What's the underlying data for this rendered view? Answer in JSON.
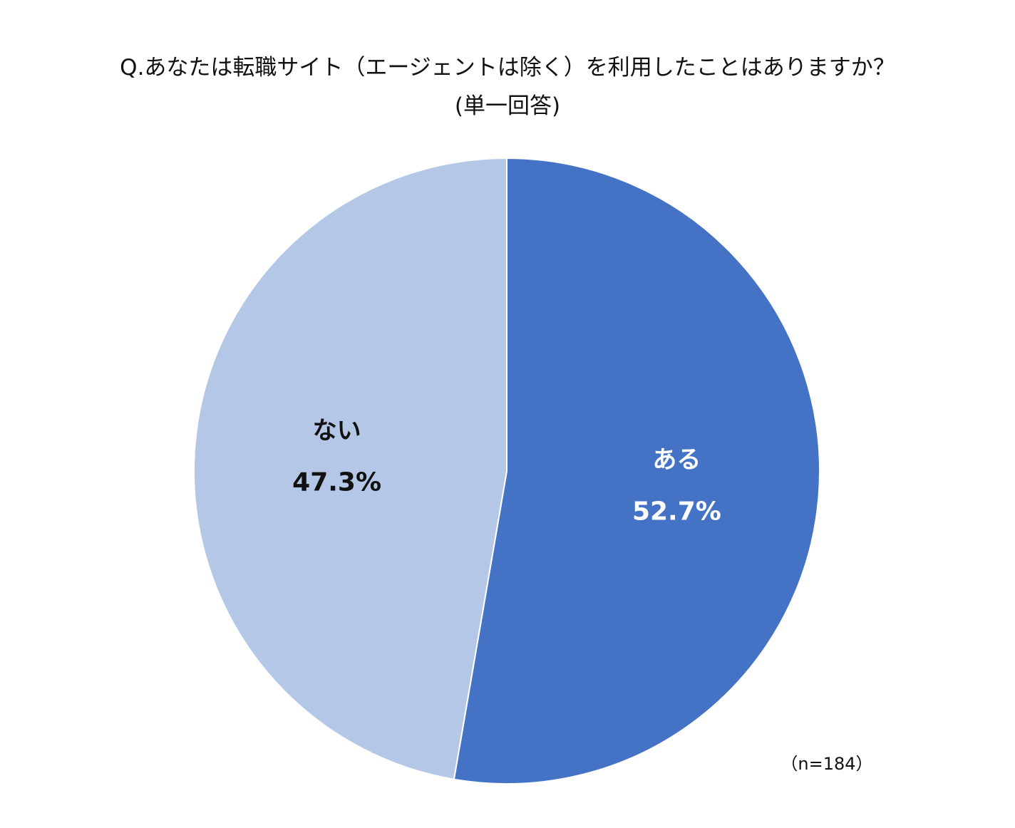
{
  "chart_data": {
    "type": "pie",
    "title": "Q.あなたは転職サイト（エージェントは除く）を利用したことはありますか？",
    "subtitle": "(単一回答)",
    "categories": [
      "ある",
      "ない"
    ],
    "values": [
      52.7,
      47.3
    ],
    "value_labels": [
      "52.7%",
      "47.3%"
    ],
    "colors": [
      "#4472c4",
      "#b4c7e7"
    ],
    "label_colors": [
      "#ffffff",
      "#111111"
    ],
    "start_angle": "12 o'clock",
    "direction": "clockwise",
    "legend": "none",
    "sample_size": "（n=184）"
  }
}
